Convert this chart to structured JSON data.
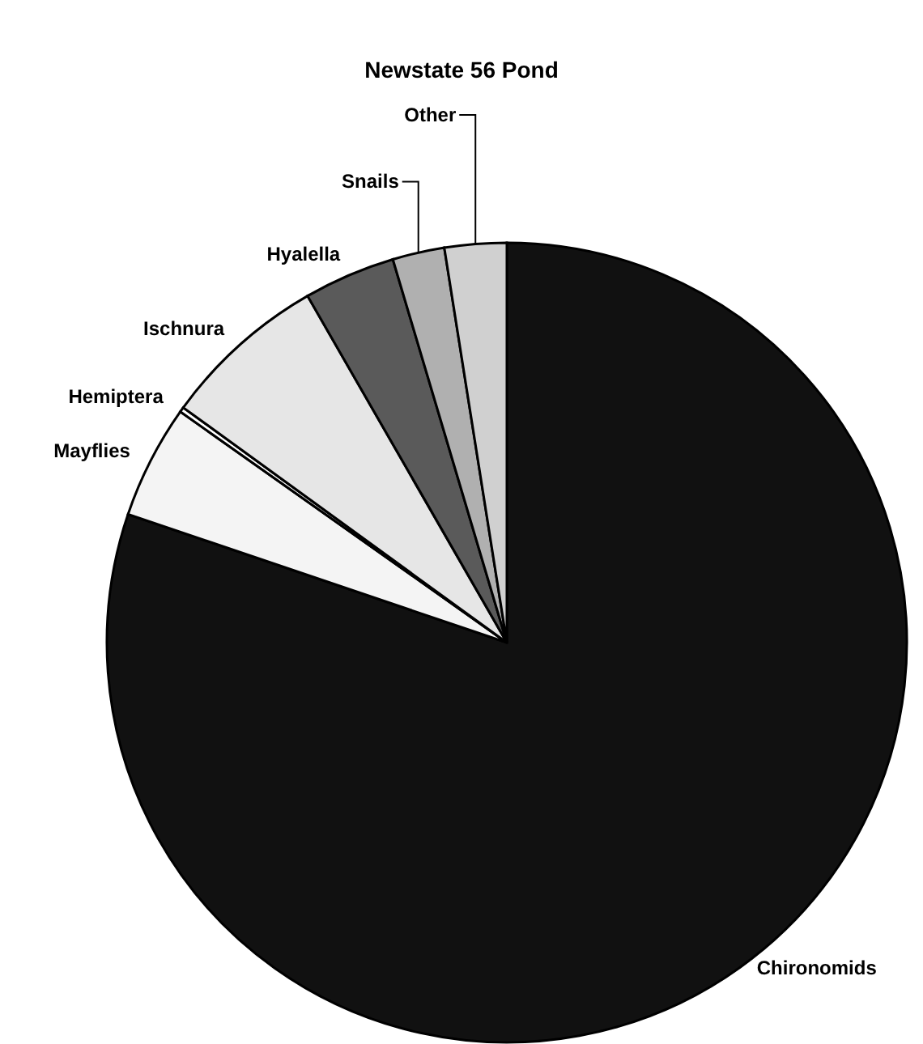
{
  "chart_data": {
    "type": "pie",
    "title": "Newstate 56 Pond",
    "categories": [
      "Chironomids",
      "Mayflies",
      "Hemiptera",
      "Ischnura",
      "Hyalella",
      "Snails",
      "Other"
    ],
    "values": [
      80.2,
      4.6,
      0.2,
      6.7,
      3.7,
      2.1,
      2.5
    ],
    "colors": [
      "#111111",
      "#f4f4f4",
      "#ffffff",
      "#e6e6e6",
      "#5a5a5a",
      "#b0b0b0",
      "#d0d0d0"
    ]
  }
}
